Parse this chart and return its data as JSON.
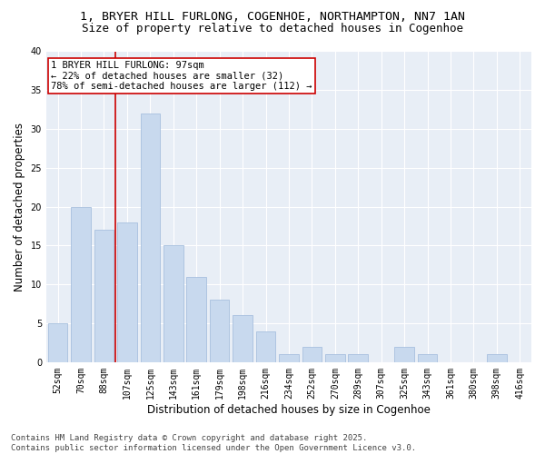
{
  "title_line1": "1, BRYER HILL FURLONG, COGENHOE, NORTHAMPTON, NN7 1AN",
  "title_line2": "Size of property relative to detached houses in Cogenhoe",
  "xlabel": "Distribution of detached houses by size in Cogenhoe",
  "ylabel": "Number of detached properties",
  "categories": [
    "52sqm",
    "70sqm",
    "88sqm",
    "107sqm",
    "125sqm",
    "143sqm",
    "161sqm",
    "179sqm",
    "198sqm",
    "216sqm",
    "234sqm",
    "252sqm",
    "270sqm",
    "289sqm",
    "307sqm",
    "325sqm",
    "343sqm",
    "361sqm",
    "380sqm",
    "398sqm",
    "416sqm"
  ],
  "values": [
    5,
    20,
    17,
    18,
    32,
    15,
    11,
    8,
    6,
    4,
    1,
    2,
    1,
    1,
    0,
    2,
    1,
    0,
    0,
    1,
    0
  ],
  "bar_color": "#c8d9ee",
  "bar_edgecolor": "#a8c0de",
  "vline_x": 2.5,
  "vline_color": "#cc0000",
  "annotation_text": "1 BRYER HILL FURLONG: 97sqm\n← 22% of detached houses are smaller (32)\n78% of semi-detached houses are larger (112) →",
  "annotation_box_facecolor": "#ffffff",
  "annotation_box_edgecolor": "#cc0000",
  "ylim": [
    0,
    40
  ],
  "yticks": [
    0,
    5,
    10,
    15,
    20,
    25,
    30,
    35,
    40
  ],
  "footer_line1": "Contains HM Land Registry data © Crown copyright and database right 2025.",
  "footer_line2": "Contains public sector information licensed under the Open Government Licence v3.0.",
  "fig_bg_color": "#ffffff",
  "plot_bg_color": "#e8eef6",
  "grid_color": "#ffffff",
  "title_fontsize": 9.5,
  "subtitle_fontsize": 9,
  "axis_label_fontsize": 8.5,
  "tick_fontsize": 7,
  "annotation_fontsize": 7.5,
  "footer_fontsize": 6.5
}
